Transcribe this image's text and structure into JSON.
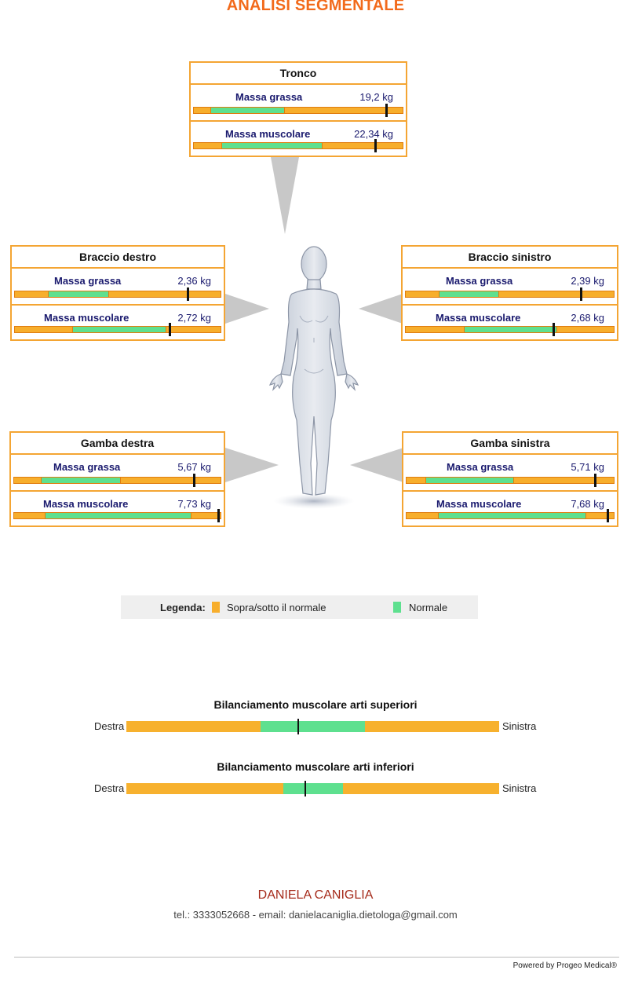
{
  "page_title": "ANALISI SEGMENTALE",
  "segments": {
    "tronco": {
      "title": "Tronco",
      "fat": {
        "label": "Massa grassa",
        "value": "19,2 kg",
        "normal_range": [
          0.08,
          0.43
        ],
        "marker": 0.92
      },
      "muscle": {
        "label": "Massa muscolare",
        "value": "22,34 kg",
        "normal_range": [
          0.13,
          0.61
        ],
        "marker": 0.87
      }
    },
    "braccio_destro": {
      "title": "Braccio destro",
      "fat": {
        "label": "Massa grassa",
        "value": "2,36 kg",
        "normal_range": [
          0.16,
          0.45
        ],
        "marker": 0.84
      },
      "muscle": {
        "label": "Massa muscolare",
        "value": "2,72 kg",
        "normal_range": [
          0.28,
          0.73
        ],
        "marker": 0.75
      }
    },
    "braccio_sinistro": {
      "title": "Braccio sinistro",
      "fat": {
        "label": "Massa grassa",
        "value": "2,39 kg",
        "normal_range": [
          0.16,
          0.44
        ],
        "marker": 0.84
      },
      "muscle": {
        "label": "Massa muscolare",
        "value": "2,68 kg",
        "normal_range": [
          0.28,
          0.72
        ],
        "marker": 0.71
      }
    },
    "gamba_destra": {
      "title": "Gamba destra",
      "fat": {
        "label": "Massa grassa",
        "value": "5,67 kg",
        "normal_range": [
          0.13,
          0.51
        ],
        "marker": 0.87
      },
      "muscle": {
        "label": "Massa muscolare",
        "value": "7,73 kg",
        "normal_range": [
          0.15,
          0.85
        ],
        "marker": 0.99
      }
    },
    "gamba_sinistra": {
      "title": "Gamba sinistra",
      "fat": {
        "label": "Massa grassa",
        "value": "5,71 kg",
        "normal_range": [
          0.09,
          0.51
        ],
        "marker": 0.91
      },
      "muscle": {
        "label": "Massa muscolare",
        "value": "7,68 kg",
        "normal_range": [
          0.15,
          0.86
        ],
        "marker": 0.97
      }
    }
  },
  "legend": {
    "title": "Legenda:",
    "out_of_range_label": "Sopra/sotto il normale",
    "normal_label": "Normale"
  },
  "balance": {
    "upper": {
      "title": "Bilanciamento muscolare arti superiori",
      "left": "Destra",
      "right": "Sinistra",
      "normal_range": [
        0.36,
        0.64
      ],
      "marker": 0.46
    },
    "lower": {
      "title": "Bilanciamento muscolare arti inferiori",
      "left": "Destra",
      "right": "Sinistra",
      "normal_range": [
        0.42,
        0.58
      ],
      "marker": 0.48
    }
  },
  "footer": {
    "name": "DANIELA CANIGLIA",
    "contact": "tel.: 3333052668 - email: danielacaniglia.dietologa@gmail.com",
    "powered_by": "Powered by Progeo Medical®"
  },
  "colors": {
    "accent": "#f26a1b",
    "orange": "#f7ae2c",
    "green": "#5ee08f",
    "border": "#f4a533",
    "navy": "#1a1a6e",
    "name_red": "#a52a1a"
  }
}
